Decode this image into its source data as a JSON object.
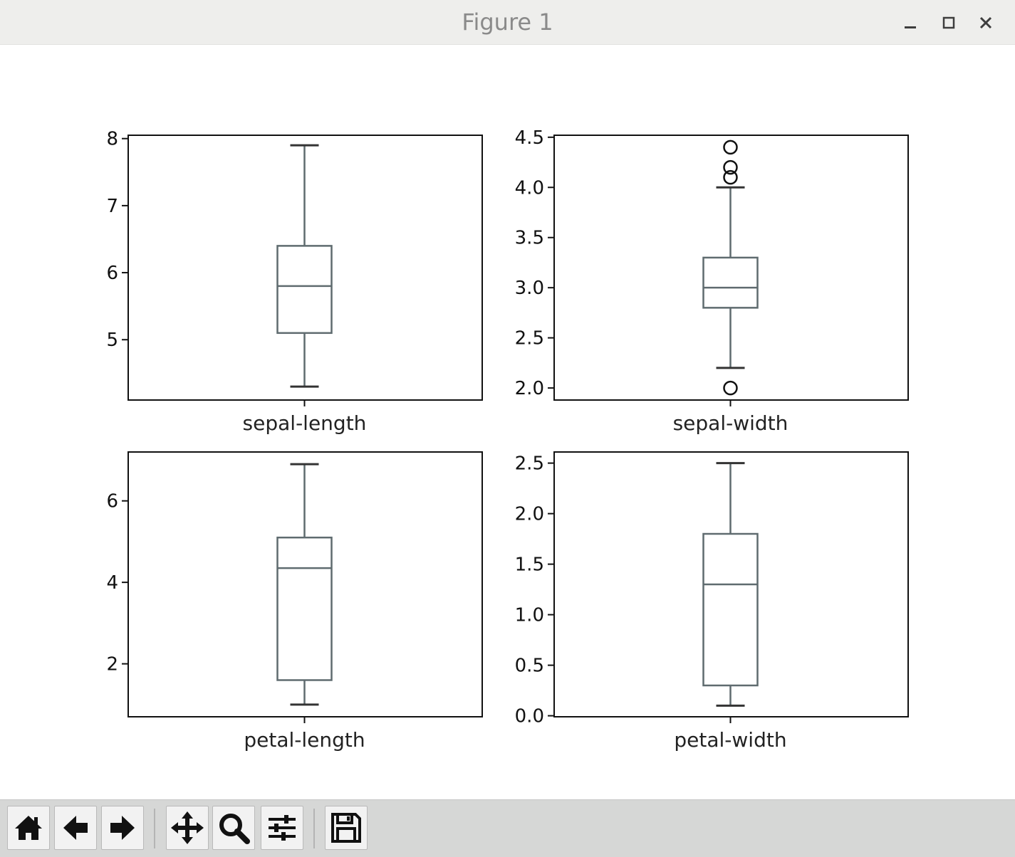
{
  "window": {
    "title": "Figure 1",
    "minimize_glyph": "_",
    "maximize_glyph": "□",
    "close_glyph": "✕"
  },
  "toolbar": {
    "buttons": [
      {
        "name": "home-button",
        "icon": "home-icon"
      },
      {
        "name": "back-button",
        "icon": "arrow-left-icon"
      },
      {
        "name": "forward-button",
        "icon": "arrow-right-icon"
      },
      {
        "name": "pan-button",
        "icon": "move-icon"
      },
      {
        "name": "zoom-button",
        "icon": "zoom-icon"
      },
      {
        "name": "configure-subplots-button",
        "icon": "sliders-icon"
      },
      {
        "name": "save-button",
        "icon": "save-icon"
      }
    ]
  },
  "colors": {
    "box": "#5f6b6f",
    "axes": "#111111"
  },
  "chart_data": [
    {
      "type": "box",
      "xlabel": "sepal-length",
      "ylim": [
        4.1,
        8.05
      ],
      "yticks": [
        5,
        6,
        7,
        8
      ],
      "ytick_labels": [
        "5",
        "6",
        "7",
        "8"
      ],
      "whisker_low": 4.3,
      "q1": 5.1,
      "median": 5.8,
      "q3": 6.4,
      "whisker_high": 7.9,
      "outliers": []
    },
    {
      "type": "box",
      "xlabel": "sepal-width",
      "ylim": [
        1.88,
        4.52
      ],
      "yticks": [
        2.0,
        2.5,
        3.0,
        3.5,
        4.0,
        4.5
      ],
      "ytick_labels": [
        "2.0",
        "2.5",
        "3.0",
        "3.5",
        "4.0",
        "4.5"
      ],
      "whisker_low": 2.2,
      "q1": 2.8,
      "median": 3.0,
      "q3": 3.3,
      "whisker_high": 4.0,
      "outliers": [
        4.4,
        4.2,
        4.1,
        2.0
      ]
    },
    {
      "type": "box",
      "xlabel": "petal-length",
      "ylim": [
        0.7,
        7.2
      ],
      "yticks": [
        2,
        4,
        6
      ],
      "ytick_labels": [
        "2",
        "4",
        "6"
      ],
      "whisker_low": 1.0,
      "q1": 1.6,
      "median": 4.35,
      "q3": 5.1,
      "whisker_high": 6.9,
      "outliers": []
    },
    {
      "type": "box",
      "xlabel": "petal-width",
      "ylim": [
        -0.01,
        2.61
      ],
      "yticks": [
        0.0,
        0.5,
        1.0,
        1.5,
        2.0,
        2.5
      ],
      "ytick_labels": [
        "0.0",
        "0.5",
        "1.0",
        "1.5",
        "2.0",
        "2.5"
      ],
      "whisker_low": 0.1,
      "q1": 0.3,
      "median": 1.3,
      "q3": 1.8,
      "whisker_high": 2.5,
      "outliers": []
    }
  ]
}
